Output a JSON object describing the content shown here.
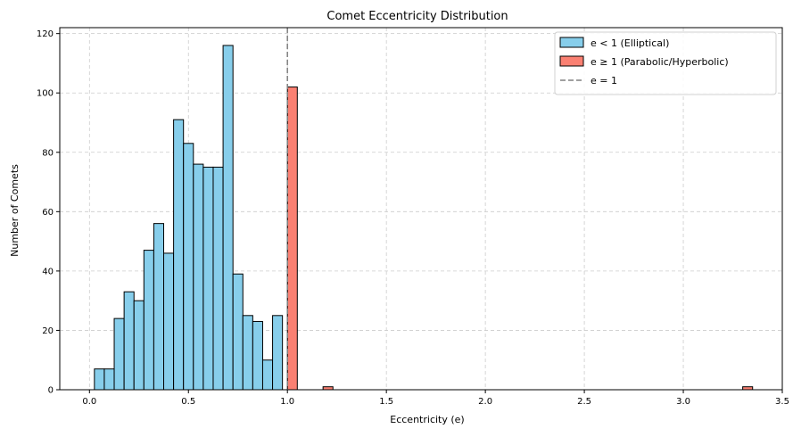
{
  "chart_data": {
    "type": "bar",
    "title": "Comet Eccentricity Distribution",
    "xlabel": "Eccentricity (e)",
    "ylabel": "Number of Comets",
    "xlim": [
      -0.15,
      3.5
    ],
    "ylim": [
      0,
      122
    ],
    "xticks": [
      0.0,
      0.5,
      1.0,
      1.5,
      2.0,
      2.5,
      3.0,
      3.5
    ],
    "xtick_labels": [
      "0.0",
      "0.5",
      "1.0",
      "1.5",
      "2.0",
      "2.5",
      "3.0",
      "3.5"
    ],
    "yticks": [
      0,
      20,
      40,
      60,
      80,
      100,
      120
    ],
    "ytick_labels": [
      "0",
      "20",
      "40",
      "60",
      "80",
      "100",
      "120"
    ],
    "grid": true,
    "legend_position": "top-right",
    "bin_width": 0.05,
    "series": [
      {
        "name": "e < 1 (Elliptical)",
        "color": "#87ceeb",
        "bins": [
          {
            "x0": 0.025,
            "count": 7
          },
          {
            "x0": 0.075,
            "count": 7
          },
          {
            "x0": 0.125,
            "count": 24
          },
          {
            "x0": 0.175,
            "count": 33
          },
          {
            "x0": 0.225,
            "count": 30
          },
          {
            "x0": 0.275,
            "count": 47
          },
          {
            "x0": 0.325,
            "count": 56
          },
          {
            "x0": 0.375,
            "count": 46
          },
          {
            "x0": 0.425,
            "count": 91
          },
          {
            "x0": 0.475,
            "count": 83
          },
          {
            "x0": 0.525,
            "count": 76
          },
          {
            "x0": 0.575,
            "count": 75
          },
          {
            "x0": 0.625,
            "count": 75
          },
          {
            "x0": 0.675,
            "count": 116
          },
          {
            "x0": 0.725,
            "count": 39
          },
          {
            "x0": 0.775,
            "count": 25
          },
          {
            "x0": 0.825,
            "count": 23
          },
          {
            "x0": 0.875,
            "count": 10
          },
          {
            "x0": 0.925,
            "count": 25
          }
        ]
      },
      {
        "name": "e ≥ 1 (Parabolic/Hyperbolic)",
        "color": "#fa8072",
        "bins": [
          {
            "x0": 1.0,
            "count": 102
          },
          {
            "x0": 1.18,
            "count": 1
          },
          {
            "x0": 3.3,
            "count": 1
          }
        ]
      }
    ],
    "reference_line": {
      "name": "e = 1",
      "x": 1.0,
      "color": "#808080",
      "style": "dashed"
    }
  }
}
